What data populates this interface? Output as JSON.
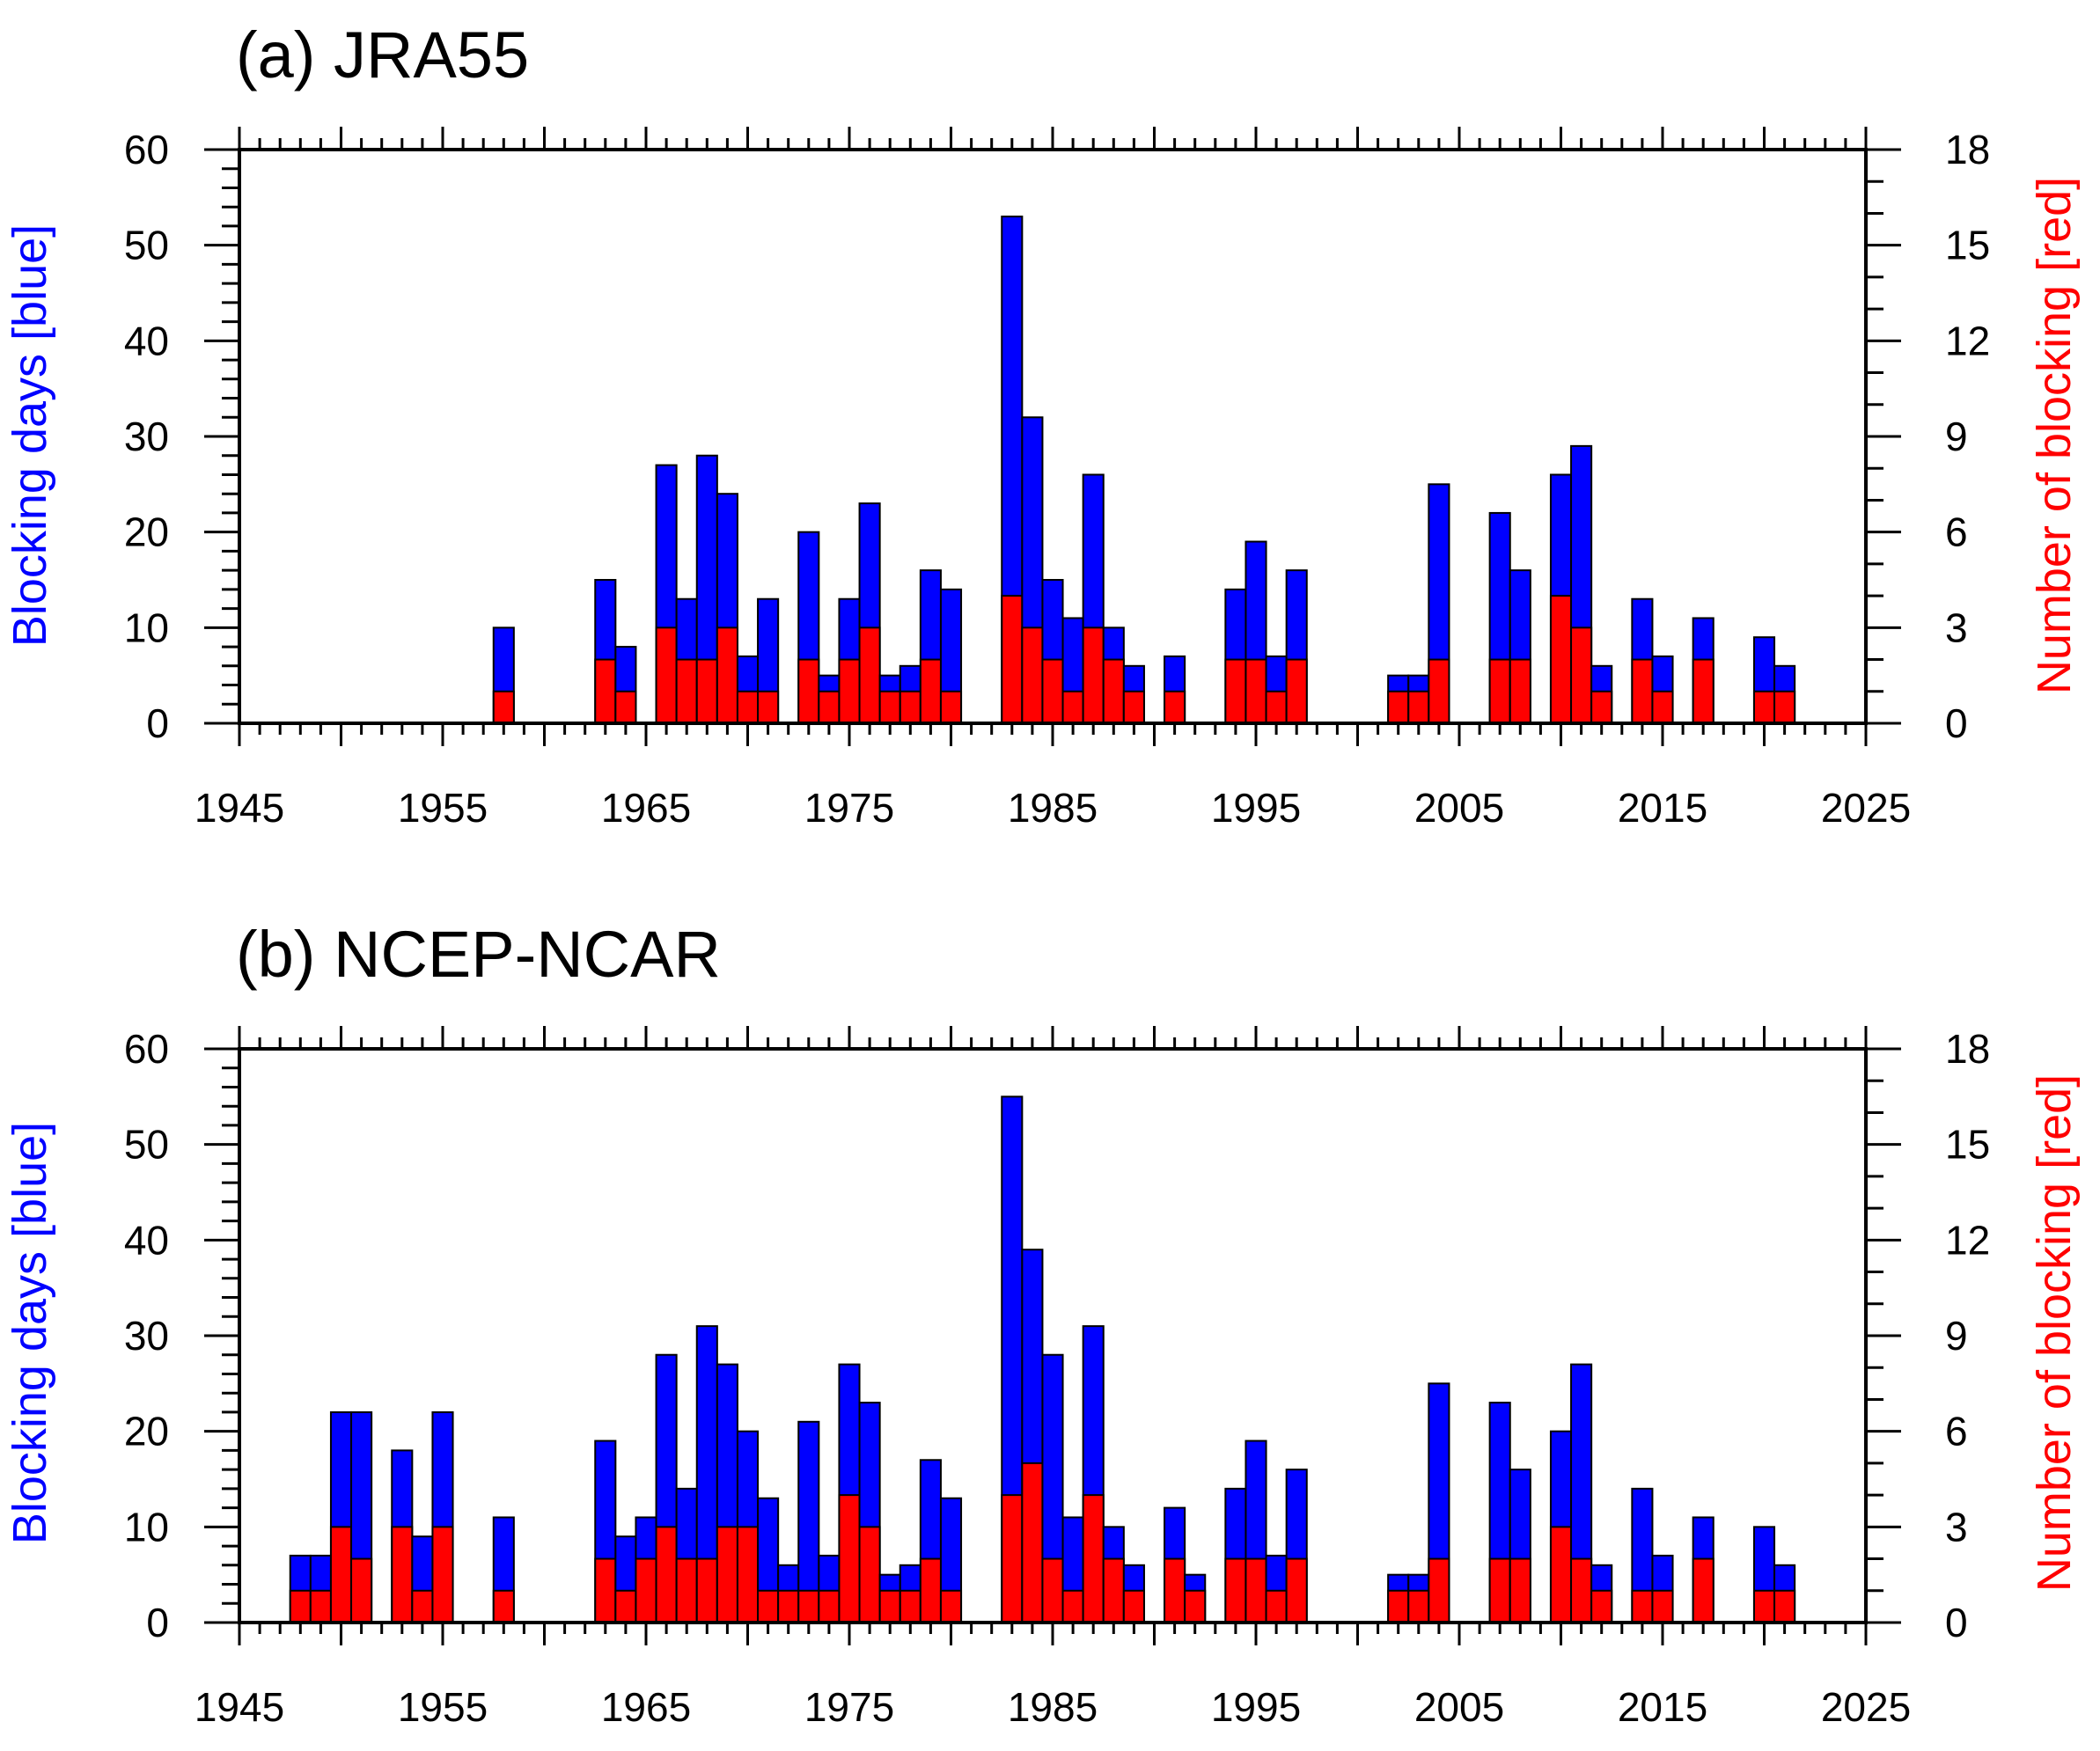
{
  "colors": {
    "blocking_days": "#0000ff",
    "blocking_count": "#ff0000"
  },
  "chart_data": [
    {
      "type": "bar",
      "title": "(a) JRA55",
      "xlabel": "",
      "ylabel_left": "Blocking days [blue]",
      "ylabel_right": "Number of blocking [red]",
      "xlim": [
        1945,
        2025
      ],
      "ylim_left": [
        0,
        60
      ],
      "ylim_right": [
        0,
        18
      ],
      "xticks": [
        "1945",
        "1955",
        "1965",
        "1975",
        "1985",
        "1995",
        "2005",
        "2015",
        "2025"
      ],
      "yticks_left": [
        "0",
        "10",
        "20",
        "30",
        "40",
        "50",
        "60"
      ],
      "yticks_right": [
        "0",
        "3",
        "6",
        "9",
        "12",
        "15",
        "18"
      ],
      "years": [
        1958,
        1963,
        1964,
        1966,
        1967,
        1968,
        1969,
        1970,
        1971,
        1973,
        1974,
        1975,
        1976,
        1977,
        1978,
        1979,
        1980,
        1983,
        1984,
        1985,
        1986,
        1987,
        1988,
        1989,
        1991,
        1994,
        1995,
        1996,
        1997,
        2002,
        2003,
        2004,
        2007,
        2008,
        2010,
        2011,
        2012,
        2014,
        2015,
        2017,
        2020,
        2021
      ],
      "series": [
        {
          "name": "Blocking days",
          "axis": "left",
          "values": [
            10,
            15,
            8,
            27,
            13,
            28,
            24,
            7,
            13,
            20,
            5,
            13,
            23,
            5,
            6,
            16,
            14,
            53,
            32,
            15,
            11,
            26,
            10,
            6,
            7,
            14,
            19,
            7,
            16,
            5,
            5,
            25,
            22,
            16,
            26,
            29,
            6,
            13,
            7,
            11,
            9,
            6
          ]
        },
        {
          "name": "Number of blocking",
          "axis": "right",
          "values": [
            1,
            2,
            1,
            3,
            2,
            2,
            3,
            1,
            1,
            2,
            1,
            2,
            3,
            1,
            1,
            2,
            1,
            4,
            3,
            2,
            1,
            3,
            2,
            1,
            1,
            2,
            2,
            1,
            2,
            1,
            1,
            2,
            2,
            2,
            4,
            3,
            1,
            2,
            1,
            2,
            1,
            1
          ]
        }
      ]
    },
    {
      "type": "bar",
      "title": "(b) NCEP-NCAR",
      "xlabel": "",
      "ylabel_left": "Blocking days [blue]",
      "ylabel_right": "Number of blocking [red]",
      "xlim": [
        1945,
        2025
      ],
      "ylim_left": [
        0,
        60
      ],
      "ylim_right": [
        0,
        18
      ],
      "xticks": [
        "1945",
        "1955",
        "1965",
        "1975",
        "1985",
        "1995",
        "2005",
        "2015",
        "2025"
      ],
      "yticks_left": [
        "0",
        "10",
        "20",
        "30",
        "40",
        "50",
        "60"
      ],
      "yticks_right": [
        "0",
        "3",
        "6",
        "9",
        "12",
        "15",
        "18"
      ],
      "years": [
        1948,
        1949,
        1950,
        1951,
        1953,
        1954,
        1955,
        1958,
        1963,
        1964,
        1965,
        1966,
        1967,
        1968,
        1969,
        1970,
        1971,
        1972,
        1973,
        1974,
        1975,
        1976,
        1977,
        1978,
        1979,
        1980,
        1983,
        1984,
        1985,
        1986,
        1987,
        1988,
        1989,
        1991,
        1992,
        1994,
        1995,
        1996,
        1997,
        2002,
        2003,
        2004,
        2007,
        2008,
        2010,
        2011,
        2012,
        2014,
        2015,
        2017,
        2020,
        2021
      ],
      "series": [
        {
          "name": "Blocking days",
          "axis": "left",
          "values": [
            7,
            7,
            22,
            22,
            18,
            9,
            22,
            11,
            19,
            9,
            11,
            28,
            14,
            31,
            27,
            20,
            13,
            6,
            21,
            7,
            27,
            23,
            5,
            6,
            17,
            13,
            55,
            39,
            28,
            11,
            31,
            10,
            6,
            12,
            5,
            14,
            19,
            7,
            16,
            5,
            5,
            25,
            23,
            16,
            20,
            27,
            6,
            14,
            7,
            11,
            10,
            6
          ]
        },
        {
          "name": "Number of blocking",
          "axis": "right",
          "values": [
            1,
            1,
            3,
            2,
            3,
            1,
            3,
            1,
            2,
            1,
            2,
            3,
            2,
            2,
            3,
            3,
            1,
            1,
            1,
            1,
            4,
            3,
            1,
            1,
            2,
            1,
            4,
            5,
            2,
            1,
            4,
            2,
            1,
            2,
            1,
            2,
            2,
            1,
            2,
            1,
            1,
            2,
            2,
            2,
            3,
            2,
            1,
            1,
            1,
            2,
            1,
            1
          ]
        }
      ]
    }
  ]
}
